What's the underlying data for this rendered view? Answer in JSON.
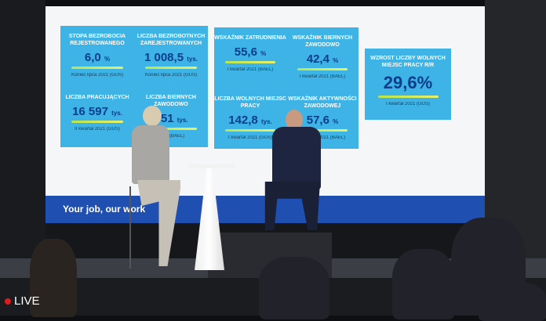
{
  "screen": {
    "left_panel": [
      {
        "title": "Stopa bezrobocia rejestrowanego",
        "value": "6,0",
        "unit": "%",
        "source": "Koniec lipca 2021 (GUS)"
      },
      {
        "title": "Liczba bezrobotnych zarejestrowanych",
        "value": "1 008,5",
        "unit": "tys.",
        "source": "Koniec lipca 2021 (GUS)"
      },
      {
        "title": "Liczba pracujących",
        "value": "16 597",
        "unit": "tys.",
        "source": "II kwartał 2021 (GUS)"
      },
      {
        "title": "Liczba biernych zawodowo",
        "value": "651",
        "unit": "tys.",
        "source": "2021 (BAEL)"
      }
    ],
    "middle_panel": [
      {
        "title": "Wskaźnik zatrudnienia",
        "value": "55,6",
        "unit": "%",
        "source": "I kwartał 2021 (BAEL)"
      },
      {
        "title": "Wskaźnik biernych zawodowo",
        "value": "42,4",
        "unit": "%",
        "source": "I kwartał 2021 (BAEL)"
      },
      {
        "title": "Liczba wolnych miejsc pracy",
        "value": "142,8",
        "unit": "tys.",
        "source": "I kwartał 2021 (GUS)"
      },
      {
        "title": "Wskaźnik aktywności zawodowej",
        "value": "57,6",
        "unit": "%",
        "source": "I kwartał 2021 (BAEL)"
      }
    ],
    "right_panel": {
      "title": "Wzrost liczby wolnych miejsc pracy r/r",
      "value": "29,6%",
      "source": "I kwartał 2021 (GUS)"
    },
    "banner": "Your job, our work",
    "colors": {
      "panel": "#3db3e6",
      "banner": "#1f4fb0",
      "value": "#0d3d8c"
    }
  },
  "overlay": {
    "live_label": "LIVE",
    "live_color": "#e01b1b"
  }
}
